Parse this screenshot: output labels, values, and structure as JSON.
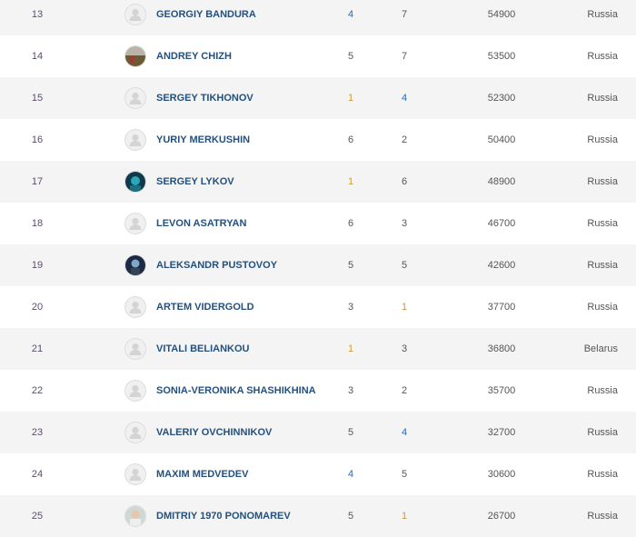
{
  "colors": {
    "gold": "#c99a3c",
    "blue": "#2a6aa3",
    "gray": "#555555"
  },
  "rows": [
    {
      "rank": "13",
      "name": "GEORGIY BANDURA",
      "avatar": "default",
      "a": "4",
      "b": "7",
      "score": "54900",
      "country": "Russia"
    },
    {
      "rank": "14",
      "name": "ANDREY CHIZH",
      "avatar": "photo-landscape",
      "a": "5",
      "b": "7",
      "score": "53500",
      "country": "Russia"
    },
    {
      "rank": "15",
      "name": "SERGEY TIKHONOV",
      "avatar": "default",
      "a": "1",
      "b": "4",
      "score": "52300",
      "country": "Russia"
    },
    {
      "rank": "16",
      "name": "YURIY MERKUSHIN",
      "avatar": "default",
      "a": "6",
      "b": "2",
      "score": "50400",
      "country": "Russia"
    },
    {
      "rank": "17",
      "name": "SERGEY LYKOV",
      "avatar": "photo-teal",
      "a": "1",
      "b": "6",
      "score": "48900",
      "country": "Russia"
    },
    {
      "rank": "18",
      "name": "LEVON ASATRYAN",
      "avatar": "default",
      "a": "6",
      "b": "3",
      "score": "46700",
      "country": "Russia"
    },
    {
      "rank": "19",
      "name": "ALEKSANDR PUSTOVOY",
      "avatar": "photo-dark",
      "a": "5",
      "b": "5",
      "score": "42600",
      "country": "Russia"
    },
    {
      "rank": "20",
      "name": "ARTEM VIDERGOLD",
      "avatar": "default",
      "a": "3",
      "b": "1",
      "score": "37700",
      "country": "Russia"
    },
    {
      "rank": "21",
      "name": "VITALI BELIANKOU",
      "avatar": "default",
      "a": "1",
      "b": "3",
      "score": "36800",
      "country": "Belarus"
    },
    {
      "rank": "22",
      "name": "SONIA-VERONIKA SHASHIKHINA",
      "avatar": "default",
      "a": "3",
      "b": "2",
      "score": "35700",
      "country": "Russia"
    },
    {
      "rank": "23",
      "name": "VALERIY OVCHINNIKOV",
      "avatar": "default",
      "a": "5",
      "b": "4",
      "score": "32700",
      "country": "Russia"
    },
    {
      "rank": "24",
      "name": "MAXIM MEDVEDEV",
      "avatar": "default",
      "a": "4",
      "b": "5",
      "score": "30600",
      "country": "Russia"
    },
    {
      "rank": "25",
      "name": "DMITRIY 1970 PONOMAREV",
      "avatar": "photo-light",
      "a": "5",
      "b": "1",
      "score": "26700",
      "country": "Russia"
    }
  ]
}
